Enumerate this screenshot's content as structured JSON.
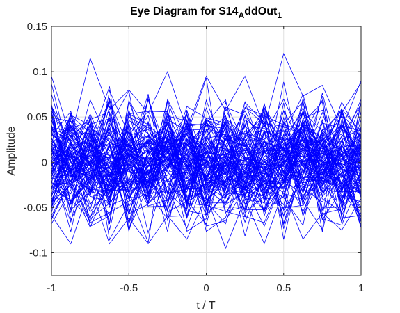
{
  "chart_data": {
    "type": "line",
    "title": {
      "main": "Eye Diagram for S14",
      "sub1": "A",
      "mid": "ddOut",
      "sub2": "1"
    },
    "xlabel": "t / T",
    "ylabel": "Amplitude",
    "xlim": [
      -1,
      1
    ],
    "ylim": [
      -0.125,
      0.15
    ],
    "x_ticks": [
      -1,
      -0.5,
      0,
      0.5,
      1
    ],
    "x_tick_labels": [
      "-1",
      "-0.5",
      "0",
      "0.5",
      "1"
    ],
    "y_ticks": [
      -0.1,
      -0.05,
      0,
      0.05,
      0.1,
      0.15
    ],
    "y_tick_labels": [
      "-0.1",
      "-0.05",
      "0",
      "0.05",
      "0.1",
      "0.15"
    ],
    "grid": true,
    "series_color": "#0000ff",
    "samples_per_trace": 17,
    "trace_count": 110,
    "x": [
      -1,
      -0.875,
      -0.75,
      -0.625,
      -0.5,
      -0.375,
      -0.25,
      -0.125,
      0,
      0.125,
      0.25,
      0.375,
      0.5,
      0.625,
      0.75,
      0.875,
      1
    ],
    "max_envelope": [
      0.095,
      0.09,
      0.115,
      0.085,
      0.08,
      0.105,
      0.1,
      0.09,
      0.095,
      0.085,
      0.095,
      0.085,
      0.12,
      0.095,
      0.085,
      0.085,
      0.09
    ],
    "min_envelope": [
      -0.075,
      -0.09,
      -0.085,
      -0.09,
      -0.085,
      -0.09,
      -0.085,
      -0.085,
      -0.09,
      -0.095,
      -0.085,
      -0.09,
      -0.095,
      -0.085,
      -0.085,
      -0.075,
      -0.075
    ]
  }
}
